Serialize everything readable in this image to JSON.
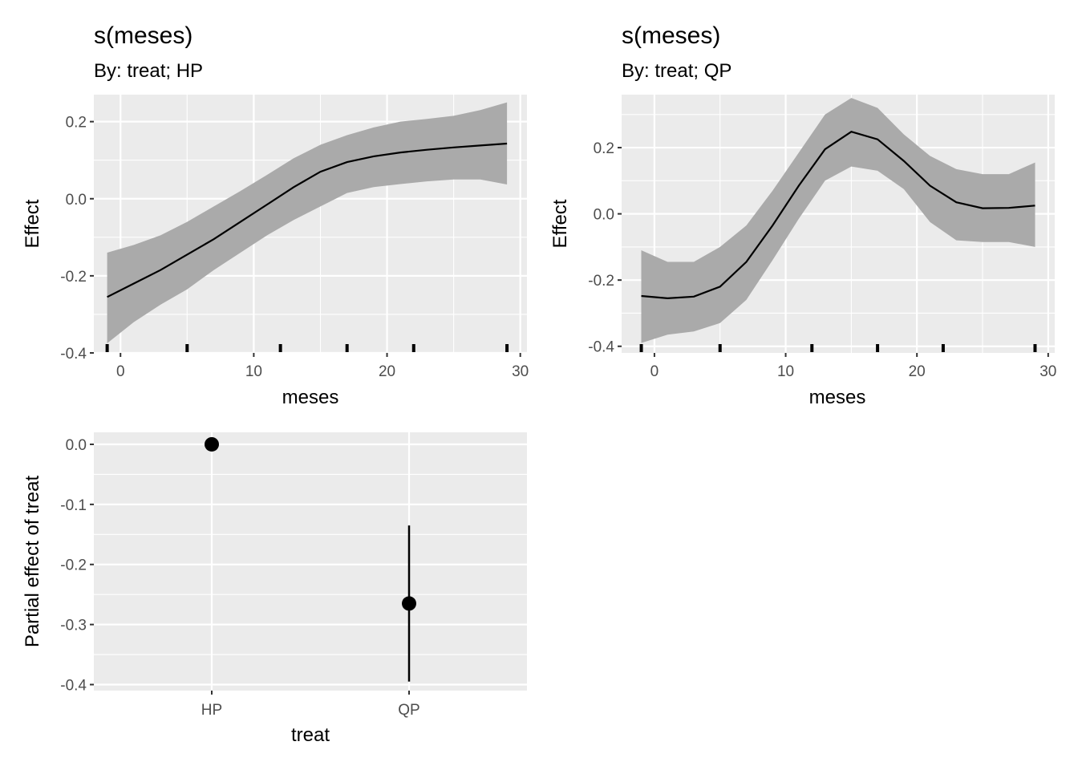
{
  "colors": {
    "panel": "#ebebeb",
    "ribbon": "#aaaaaa",
    "line": "#000000",
    "tick_text": "#4d4d4d"
  },
  "chart_data": [
    {
      "type": "line",
      "title": "s(meses)",
      "subtitle": "By: treat; HP",
      "xlabel": "meses",
      "ylabel": "Effect",
      "xlim": [
        -2,
        30.5
      ],
      "ylim": [
        -0.4,
        0.27
      ],
      "xticks": [
        0,
        10,
        20,
        30
      ],
      "xtick_labels": [
        "0",
        "10",
        "20",
        "30"
      ],
      "yticks": [
        -0.4,
        -0.2,
        0.0,
        0.2
      ],
      "ytick_labels": [
        "-0.4",
        "-0.2",
        "0.0",
        "0.2"
      ],
      "grid": true,
      "x": [
        -1,
        1,
        3,
        5,
        7,
        9,
        11,
        13,
        15,
        17,
        19,
        21,
        23,
        25,
        27,
        29
      ],
      "y": [
        -0.255,
        -0.22,
        -0.185,
        -0.145,
        -0.105,
        -0.06,
        -0.015,
        0.03,
        0.07,
        0.095,
        0.11,
        0.12,
        0.127,
        0.133,
        0.138,
        0.143
      ],
      "lower": [
        -0.375,
        -0.32,
        -0.275,
        -0.235,
        -0.185,
        -0.14,
        -0.095,
        -0.055,
        -0.02,
        0.015,
        0.03,
        0.038,
        0.045,
        0.05,
        0.05,
        0.037
      ],
      "upper": [
        -0.14,
        -0.12,
        -0.095,
        -0.06,
        -0.02,
        0.02,
        0.062,
        0.105,
        0.14,
        0.165,
        0.185,
        0.2,
        0.207,
        0.215,
        0.23,
        0.25
      ],
      "rug": [
        -1,
        5,
        12,
        17,
        22,
        29
      ]
    },
    {
      "type": "line",
      "title": "s(meses)",
      "subtitle": "By: treat; QP",
      "xlabel": "meses",
      "ylabel": "Effect",
      "xlim": [
        -2.5,
        30.5
      ],
      "ylim": [
        -0.42,
        0.36
      ],
      "xticks": [
        0,
        10,
        20,
        30
      ],
      "xtick_labels": [
        "0",
        "10",
        "20",
        "30"
      ],
      "yticks": [
        -0.4,
        -0.2,
        0.0,
        0.2
      ],
      "ytick_labels": [
        "-0.4",
        "-0.2",
        "0.0",
        "0.2"
      ],
      "grid": true,
      "x": [
        -1,
        1,
        3,
        5,
        7,
        9,
        11,
        13,
        15,
        17,
        19,
        21,
        23,
        25,
        27,
        29
      ],
      "y": [
        -0.248,
        -0.255,
        -0.25,
        -0.22,
        -0.145,
        -0.035,
        0.085,
        0.195,
        0.248,
        0.225,
        0.16,
        0.085,
        0.035,
        0.017,
        0.018,
        0.025
      ],
      "lower": [
        -0.39,
        -0.365,
        -0.355,
        -0.33,
        -0.26,
        -0.14,
        -0.015,
        0.1,
        0.143,
        0.13,
        0.075,
        -0.025,
        -0.08,
        -0.085,
        -0.085,
        -0.1
      ],
      "upper": [
        -0.11,
        -0.145,
        -0.145,
        -0.1,
        -0.035,
        0.07,
        0.185,
        0.3,
        0.35,
        0.32,
        0.24,
        0.175,
        0.135,
        0.12,
        0.12,
        0.155
      ],
      "rug": [
        -1,
        5,
        12,
        17,
        22,
        29
      ]
    },
    {
      "type": "scatter",
      "title": "",
      "xlabel": "treat",
      "ylabel": "Partial effect of treat",
      "categories": [
        "HP",
        "QP"
      ],
      "values": [
        0.0,
        -0.265
      ],
      "lower": [
        0.0,
        -0.395
      ],
      "upper": [
        0.0,
        -0.135
      ],
      "ylim": [
        -0.41,
        0.02
      ],
      "yticks": [
        -0.4,
        -0.3,
        -0.2,
        -0.1,
        0.0
      ],
      "ytick_labels": [
        "-0.4",
        "-0.3",
        "-0.2",
        "-0.1",
        "0.0"
      ],
      "grid": true
    }
  ]
}
